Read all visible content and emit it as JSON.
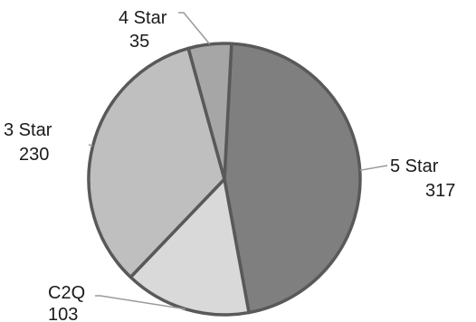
{
  "chart_data": {
    "type": "pie",
    "title": "",
    "slices": [
      {
        "label": "5 Star",
        "value": 317,
        "color": "#7f7f7f"
      },
      {
        "label": "C2Q",
        "value": 103,
        "color": "#d9d9d9"
      },
      {
        "label": "3 Star",
        "value": 230,
        "color": "#bfbfbf"
      },
      {
        "label": "4 Star",
        "value": 35,
        "color": "#a6a6a6"
      }
    ],
    "legend": "none",
    "data_labels": "category name and value, outside with leader lines",
    "border_color": "#595959"
  }
}
